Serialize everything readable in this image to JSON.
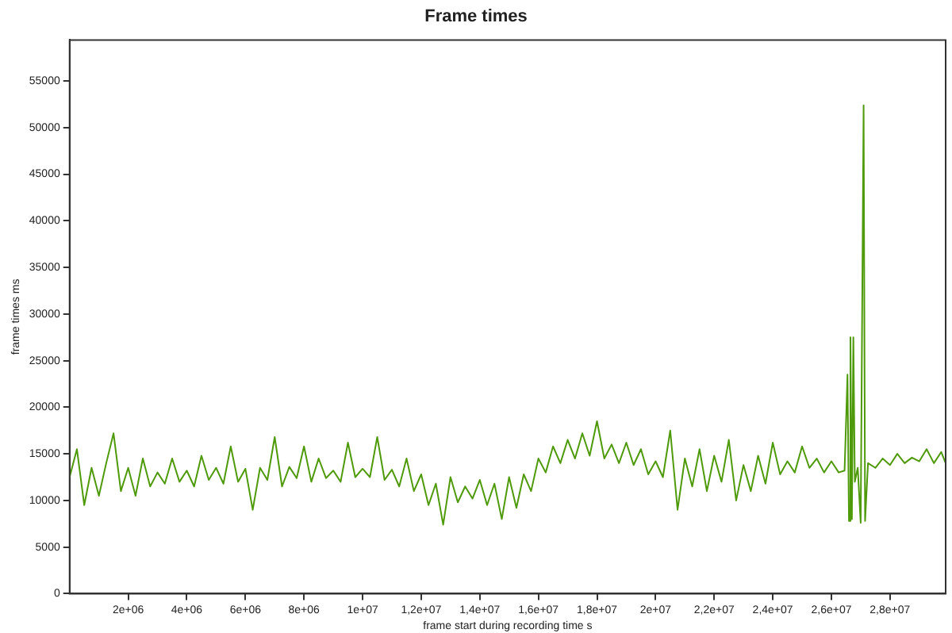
{
  "chart_data": {
    "type": "line",
    "title": "Frame times",
    "xlabel": "frame start during recording time s",
    "ylabel": "frame times ms",
    "xlim": [
      0,
      29900000
    ],
    "ylim": [
      0,
      59400
    ],
    "xticks": [
      {
        "value": 2000000,
        "label": "2e+06"
      },
      {
        "value": 4000000,
        "label": "4e+06"
      },
      {
        "value": 6000000,
        "label": "6e+06"
      },
      {
        "value": 8000000,
        "label": "8e+06"
      },
      {
        "value": 10000000,
        "label": "1e+07"
      },
      {
        "value": 12000000,
        "label": "1,2e+07"
      },
      {
        "value": 14000000,
        "label": "1,4e+07"
      },
      {
        "value": 16000000,
        "label": "1,6e+07"
      },
      {
        "value": 18000000,
        "label": "1,8e+07"
      },
      {
        "value": 20000000,
        "label": "2e+07"
      },
      {
        "value": 22000000,
        "label": "2,2e+07"
      },
      {
        "value": 24000000,
        "label": "2,4e+07"
      },
      {
        "value": 26000000,
        "label": "2,6e+07"
      },
      {
        "value": 28000000,
        "label": "2,8e+07"
      }
    ],
    "yticks": [
      0,
      5000,
      10000,
      15000,
      20000,
      25000,
      30000,
      35000,
      40000,
      45000,
      50000,
      55000
    ],
    "grid": false,
    "series": [
      {
        "color": "#4f9a0a",
        "x": [
          0,
          250000,
          500000,
          750000,
          1000000,
          1250000,
          1500000,
          1750000,
          2000000,
          2250000,
          2500000,
          2750000,
          3000000,
          3250000,
          3500000,
          3750000,
          4000000,
          4250000,
          4500000,
          4750000,
          5000000,
          5250000,
          5500000,
          5750000,
          6000000,
          6250000,
          6500000,
          6750000,
          7000000,
          7250000,
          7500000,
          7750000,
          8000000,
          8250000,
          8500000,
          8750000,
          9000000,
          9250000,
          9500000,
          9750000,
          10000000,
          10250000,
          10500000,
          10750000,
          11000000,
          11250000,
          11500000,
          11750000,
          12000000,
          12250000,
          12500000,
          12750000,
          13000000,
          13250000,
          13500000,
          13750000,
          14000000,
          14250000,
          14500000,
          14750000,
          15000000,
          15250000,
          15500000,
          15750000,
          16000000,
          16250000,
          16500000,
          16750000,
          17000000,
          17250000,
          17500000,
          17750000,
          18000000,
          18250000,
          18500000,
          18750000,
          19000000,
          19250000,
          19500000,
          19750000,
          20000000,
          20250000,
          20500000,
          20750000,
          21000000,
          21250000,
          21500000,
          21750000,
          22000000,
          22250000,
          22500000,
          22750000,
          23000000,
          23250000,
          23500000,
          23750000,
          24000000,
          24250000,
          24500000,
          24750000,
          25000000,
          25250000,
          25500000,
          25750000,
          26000000,
          26250000,
          26450000,
          26550000,
          26600000,
          26650000,
          26700000,
          26750000,
          26800000,
          26900000,
          27000000,
          27100000,
          27150000,
          27250000,
          27500000,
          27750000,
          28000000,
          28250000,
          28500000,
          28750000,
          29000000,
          29250000,
          29500000,
          29750000,
          29900000
        ],
        "values": [
          12500,
          15500,
          9500,
          13500,
          10500,
          14000,
          17200,
          11000,
          13500,
          10500,
          14500,
          11500,
          13000,
          11800,
          14500,
          12000,
          13200,
          11500,
          14800,
          12200,
          13500,
          11800,
          15800,
          12000,
          13400,
          9000,
          13500,
          12200,
          16800,
          11500,
          13600,
          12400,
          15800,
          12000,
          14500,
          12400,
          13200,
          12000,
          16200,
          12500,
          13400,
          12500,
          16800,
          12200,
          13300,
          11500,
          14500,
          11000,
          12800,
          9500,
          11800,
          7400,
          12500,
          9800,
          11500,
          10200,
          12200,
          9500,
          11800,
          8000,
          12500,
          9200,
          12800,
          11000,
          14500,
          13000,
          15800,
          14000,
          16500,
          14500,
          17200,
          14800,
          18500,
          14500,
          16000,
          14000,
          16200,
          13800,
          15500,
          12800,
          14200,
          12500,
          17500,
          9000,
          14500,
          11500,
          15500,
          11000,
          14800,
          12000,
          16500,
          10000,
          13800,
          11000,
          14800,
          11800,
          16200,
          12800,
          14200,
          13000,
          15800,
          13500,
          14500,
          13000,
          14200,
          13000,
          13200,
          23500,
          7800,
          27500,
          8000,
          27500,
          12000,
          13500,
          7600,
          52400,
          7800,
          14000,
          13500,
          14500,
          13800,
          15000,
          14000,
          14600,
          14200,
          15500,
          14000,
          15200,
          14000
        ]
      }
    ]
  }
}
